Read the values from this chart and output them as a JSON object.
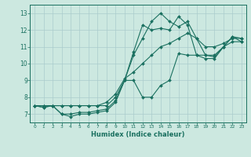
{
  "xlabel": "Humidex (Indice chaleur)",
  "xlim": [
    -0.5,
    23.5
  ],
  "ylim": [
    6.5,
    13.5
  ],
  "xticks": [
    0,
    1,
    2,
    3,
    4,
    5,
    6,
    7,
    8,
    9,
    10,
    11,
    12,
    13,
    14,
    15,
    16,
    17,
    18,
    19,
    20,
    21,
    22,
    23
  ],
  "yticks": [
    7,
    8,
    9,
    10,
    11,
    12,
    13
  ],
  "bg_color": "#cce8e0",
  "grid_color": "#aacccc",
  "line_color": "#1a7060",
  "lines": [
    {
      "x": [
        0,
        1,
        2,
        3,
        4,
        5,
        6,
        7,
        8,
        9,
        10,
        11,
        12,
        13,
        14,
        15,
        16,
        17,
        18,
        19,
        20,
        21,
        22,
        23
      ],
      "y": [
        7.5,
        7.4,
        7.5,
        7.0,
        6.85,
        7.0,
        7.0,
        7.1,
        7.2,
        7.7,
        9.0,
        10.7,
        12.3,
        12.0,
        12.1,
        12.0,
        12.8,
        12.3,
        10.5,
        10.3,
        10.3,
        11.0,
        11.6,
        11.3
      ]
    },
    {
      "x": [
        0,
        1,
        2,
        3,
        4,
        5,
        6,
        7,
        8,
        9,
        10,
        11,
        12,
        13,
        14,
        15,
        16,
        17,
        18,
        19,
        20,
        21,
        22,
        23
      ],
      "y": [
        7.5,
        7.4,
        7.5,
        7.0,
        7.0,
        7.1,
        7.1,
        7.2,
        7.3,
        7.8,
        9.0,
        9.0,
        8.0,
        8.0,
        8.7,
        9.0,
        10.6,
        10.5,
        10.5,
        10.5,
        10.4,
        11.0,
        11.3,
        11.3
      ]
    },
    {
      "x": [
        0,
        1,
        2,
        3,
        4,
        5,
        6,
        7,
        8,
        9,
        10,
        11,
        12,
        13,
        14,
        15,
        16,
        17,
        18,
        19,
        20,
        21,
        22,
        23
      ],
      "y": [
        7.5,
        7.5,
        7.5,
        7.5,
        7.5,
        7.5,
        7.5,
        7.5,
        7.5,
        8.0,
        9.0,
        10.5,
        11.5,
        12.5,
        13.0,
        12.5,
        12.2,
        12.5,
        11.5,
        10.5,
        10.5,
        11.0,
        11.6,
        11.5
      ]
    },
    {
      "x": [
        0,
        1,
        2,
        3,
        4,
        5,
        6,
        7,
        8,
        9,
        10,
        11,
        12,
        13,
        14,
        15,
        16,
        17,
        18,
        19,
        20,
        21,
        22,
        23
      ],
      "y": [
        7.5,
        7.5,
        7.5,
        7.5,
        7.5,
        7.5,
        7.5,
        7.5,
        7.7,
        8.2,
        9.1,
        9.5,
        10.0,
        10.5,
        11.0,
        11.2,
        11.5,
        11.8,
        11.5,
        11.0,
        11.0,
        11.2,
        11.5,
        11.5
      ]
    }
  ]
}
